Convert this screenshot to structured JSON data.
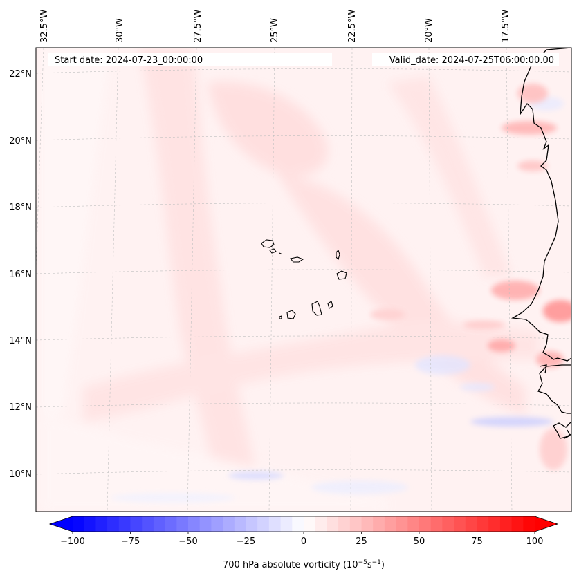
{
  "header": {
    "start_date": "Start date: 2024-07-23_00:00:00",
    "valid_date": "Valid_date: 2024-07-25T06:00:00.00"
  },
  "axes": {
    "lon_labels": [
      "32.5°W",
      "30°W",
      "27.5°W",
      "25°W",
      "22.5°W",
      "20°W",
      "17.5°W"
    ],
    "lat_labels": [
      "22°N",
      "20°N",
      "18°N",
      "16°N",
      "14°N",
      "12°N",
      "10°N"
    ]
  },
  "colorbar": {
    "label": "700 hPa absolute vorticity (10",
    "label_exp1": "−5",
    "label_mid": "s",
    "label_exp2": "−1",
    "label_end": ")",
    "ticks": [
      "−100",
      "−75",
      "−50",
      "−25",
      "0",
      "25",
      "50",
      "75",
      "100"
    ],
    "min": -100,
    "max": 100,
    "extend": "both"
  },
  "colors": {
    "negative": "#0000ff",
    "zero": "#ffffff",
    "positive": "#ff0000",
    "coast": "#000000"
  }
}
